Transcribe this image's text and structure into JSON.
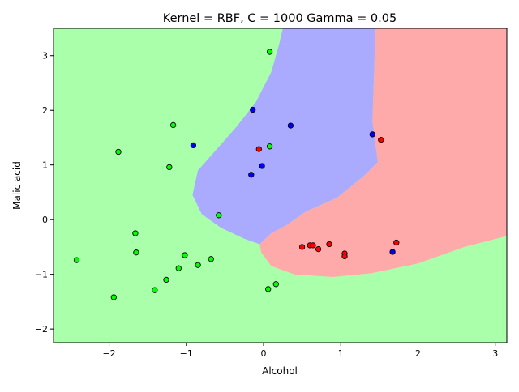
{
  "chart_data": {
    "type": "scatter",
    "title": "Kernel = RBF, C = 1000 Gamma = 0.05",
    "xlabel": "Alcohol",
    "ylabel": "Malic acid",
    "xlim": [
      -2.72,
      3.15
    ],
    "ylim": [
      -2.25,
      3.5
    ],
    "xticks": [
      -2,
      -1,
      0,
      1,
      2,
      3
    ],
    "yticks": [
      -2,
      -1,
      0,
      1,
      2,
      3
    ],
    "grid": false,
    "colors": {
      "region_green": "#aaffaa",
      "region_blue": "#aaaaff",
      "region_red": "#ffaaaa",
      "point_green": "#00ff00",
      "point_blue": "#0000ff",
      "point_red": "#ff0000",
      "edge": "#000000"
    },
    "regions": {
      "blue": [
        [
          0.25,
          3.5
        ],
        [
          1.45,
          3.5
        ],
        [
          1.43,
          2.6
        ],
        [
          1.41,
          1.8
        ],
        [
          1.48,
          1.05
        ],
        [
          1.3,
          0.8
        ],
        [
          0.95,
          0.4
        ],
        [
          0.55,
          0.15
        ],
        [
          0.3,
          -0.1
        ],
        [
          0.1,
          -0.25
        ],
        [
          -0.05,
          -0.45
        ],
        [
          -0.25,
          -0.35
        ],
        [
          -0.55,
          -0.15
        ],
        [
          -0.8,
          0.1
        ],
        [
          -0.92,
          0.45
        ],
        [
          -0.85,
          0.9
        ],
        [
          -0.6,
          1.3
        ],
        [
          -0.35,
          1.7
        ],
        [
          -0.1,
          2.15
        ],
        [
          0.1,
          2.7
        ],
        [
          0.2,
          3.2
        ]
      ],
      "red": [
        [
          1.45,
          3.5
        ],
        [
          3.15,
          3.5
        ],
        [
          3.15,
          -0.3
        ],
        [
          2.6,
          -0.5
        ],
        [
          2.0,
          -0.8
        ],
        [
          1.4,
          -0.98
        ],
        [
          0.9,
          -1.05
        ],
        [
          0.4,
          -1.0
        ],
        [
          0.1,
          -0.85
        ],
        [
          -0.03,
          -0.6
        ],
        [
          -0.05,
          -0.45
        ],
        [
          0.1,
          -0.25
        ],
        [
          0.3,
          -0.1
        ],
        [
          0.55,
          0.15
        ],
        [
          0.95,
          0.4
        ],
        [
          1.3,
          0.8
        ],
        [
          1.48,
          1.05
        ],
        [
          1.41,
          1.8
        ],
        [
          1.43,
          2.6
        ]
      ]
    },
    "series": [
      {
        "color": "green",
        "points": [
          [
            0.08,
            3.07
          ],
          [
            -1.17,
            1.73
          ],
          [
            -1.88,
            1.24
          ],
          [
            -1.22,
            0.96
          ],
          [
            0.08,
            1.34
          ],
          [
            -0.58,
            0.08
          ],
          [
            -1.66,
            -0.25
          ],
          [
            -2.42,
            -0.74
          ],
          [
            -1.65,
            -0.6
          ],
          [
            -1.02,
            -0.65
          ],
          [
            -0.68,
            -0.72
          ],
          [
            -1.1,
            -0.89
          ],
          [
            -0.85,
            -0.83
          ],
          [
            -1.26,
            -1.1
          ],
          [
            -1.41,
            -1.29
          ],
          [
            0.16,
            -1.18
          ],
          [
            0.06,
            -1.27
          ],
          [
            -1.94,
            -1.42
          ]
        ]
      },
      {
        "color": "blue",
        "points": [
          [
            -0.14,
            2.01
          ],
          [
            0.35,
            1.72
          ],
          [
            1.41,
            1.56
          ],
          [
            -0.91,
            1.36
          ],
          [
            -0.02,
            0.98
          ],
          [
            -0.16,
            0.82
          ],
          [
            1.67,
            -0.59
          ]
        ]
      },
      {
        "color": "red",
        "points": [
          [
            -0.06,
            1.29
          ],
          [
            1.52,
            1.46
          ],
          [
            0.5,
            -0.5
          ],
          [
            0.6,
            -0.47
          ],
          [
            0.64,
            -0.47
          ],
          [
            0.71,
            -0.54
          ],
          [
            0.85,
            -0.45
          ],
          [
            1.05,
            -0.62
          ],
          [
            1.05,
            -0.67
          ],
          [
            1.72,
            -0.42
          ]
        ]
      }
    ]
  }
}
